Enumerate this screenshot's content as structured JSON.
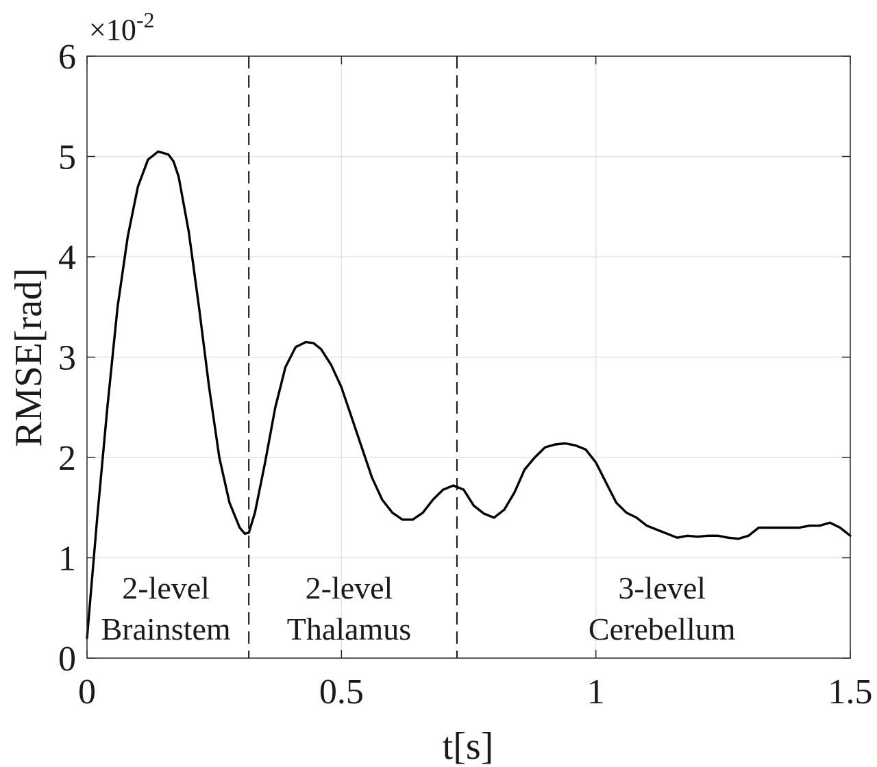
{
  "chart_data": {
    "type": "line",
    "title": "",
    "xlabel": "t[s]",
    "ylabel": "RMSE[rad]",
    "y_exponent_label": "×10",
    "y_exponent_power": "-2",
    "y_scale_factor": 0.01,
    "xlim": [
      0,
      1.5
    ],
    "ylim": [
      0,
      6
    ],
    "x_ticks": [
      0,
      0.5,
      1,
      1.5
    ],
    "x_tick_labels": [
      "0",
      "0.5",
      "1",
      "1.5"
    ],
    "y_ticks": [
      0,
      1,
      2,
      3,
      4,
      5,
      6
    ],
    "y_tick_labels": [
      "0",
      "1",
      "2",
      "3",
      "4",
      "5",
      "6"
    ],
    "grid": true,
    "legend": "none",
    "dividers_x": [
      0.318,
      0.727
    ],
    "regions": [
      {
        "line1": "2-level",
        "line2": "Brainstem",
        "x_center": 0.155
      },
      {
        "line1": "2-level",
        "line2": "Thalamus",
        "x_center": 0.515
      },
      {
        "line1": "3-level",
        "line2": "Cerebellum",
        "x_center": 1.13
      }
    ],
    "series": [
      {
        "color": "#000000",
        "x": [
          0,
          0.02,
          0.04,
          0.06,
          0.08,
          0.1,
          0.12,
          0.14,
          0.16,
          0.17,
          0.18,
          0.2,
          0.22,
          0.24,
          0.26,
          0.28,
          0.3,
          0.31,
          0.318,
          0.33,
          0.35,
          0.37,
          0.39,
          0.41,
          0.43,
          0.445,
          0.46,
          0.48,
          0.5,
          0.52,
          0.54,
          0.56,
          0.58,
          0.6,
          0.62,
          0.64,
          0.66,
          0.68,
          0.7,
          0.72,
          0.74,
          0.76,
          0.78,
          0.8,
          0.82,
          0.84,
          0.86,
          0.88,
          0.9,
          0.92,
          0.94,
          0.96,
          0.98,
          1.0,
          1.02,
          1.04,
          1.06,
          1.08,
          1.1,
          1.12,
          1.14,
          1.16,
          1.18,
          1.2,
          1.22,
          1.24,
          1.26,
          1.28,
          1.3,
          1.32,
          1.34,
          1.36,
          1.38,
          1.4,
          1.42,
          1.44,
          1.46,
          1.48,
          1.5
        ],
        "y": [
          0.2,
          1.4,
          2.5,
          3.5,
          4.2,
          4.7,
          4.97,
          5.05,
          5.02,
          4.95,
          4.8,
          4.25,
          3.5,
          2.7,
          2.0,
          1.55,
          1.3,
          1.24,
          1.25,
          1.45,
          1.95,
          2.5,
          2.9,
          3.1,
          3.15,
          3.14,
          3.08,
          2.92,
          2.7,
          2.4,
          2.1,
          1.8,
          1.58,
          1.45,
          1.38,
          1.38,
          1.45,
          1.58,
          1.68,
          1.72,
          1.68,
          1.52,
          1.44,
          1.4,
          1.48,
          1.65,
          1.88,
          2.0,
          2.1,
          2.13,
          2.14,
          2.12,
          2.08,
          1.95,
          1.75,
          1.55,
          1.45,
          1.4,
          1.32,
          1.28,
          1.24,
          1.2,
          1.22,
          1.21,
          1.22,
          1.22,
          1.2,
          1.19,
          1.22,
          1.3,
          1.3,
          1.3,
          1.3,
          1.3,
          1.32,
          1.32,
          1.35,
          1.3,
          1.22
        ]
      }
    ]
  }
}
